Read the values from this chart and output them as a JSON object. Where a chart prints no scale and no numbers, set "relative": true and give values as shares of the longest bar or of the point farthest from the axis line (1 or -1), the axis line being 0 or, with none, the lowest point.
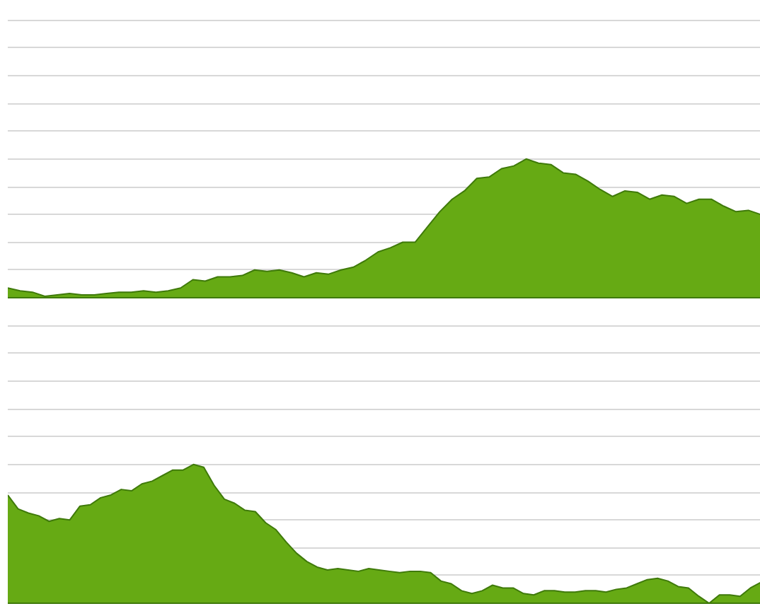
{
  "chart_data": [
    {
      "type": "area",
      "relative": true,
      "grid": "y",
      "categories": [
        null,
        null,
        null,
        null,
        null,
        null,
        null,
        null,
        null,
        null,
        null,
        null,
        null,
        null,
        null,
        null,
        null,
        null,
        null,
        null,
        null,
        null,
        null,
        null,
        null,
        null,
        null,
        null,
        null,
        null,
        null,
        null,
        null,
        null,
        null,
        null,
        null,
        null,
        null,
        null,
        null,
        null,
        null,
        null,
        null,
        null,
        null,
        null,
        null,
        null,
        null,
        null,
        null,
        null,
        null,
        null,
        null,
        null,
        null,
        null,
        null,
        null
      ],
      "series": [
        {
          "color": "#66aa14",
          "values": [
            0.07,
            0.05,
            0.04,
            0.01,
            0.02,
            0.03,
            0.02,
            0.02,
            0.03,
            0.04,
            0.04,
            0.05,
            0.04,
            0.05,
            0.07,
            0.13,
            0.12,
            0.15,
            0.15,
            0.16,
            0.2,
            0.19,
            0.2,
            0.18,
            0.15,
            0.18,
            0.17,
            0.2,
            0.22,
            0.27,
            0.33,
            0.36,
            0.4,
            0.4,
            0.51,
            0.62,
            0.71,
            0.77,
            0.86,
            0.87,
            0.93,
            0.95,
            1.0,
            0.97,
            0.96,
            0.9,
            0.89,
            0.84,
            0.78,
            0.73,
            0.77,
            0.76,
            0.71,
            0.74,
            0.73,
            0.68,
            0.71,
            0.71,
            0.66,
            0.62,
            0.63,
            0.6
          ]
        }
      ]
    },
    {
      "type": "area",
      "relative": true,
      "grid": "y",
      "categories": [
        null,
        null,
        null,
        null,
        null,
        null,
        null,
        null,
        null,
        null,
        null,
        null,
        null,
        null,
        null,
        null,
        null,
        null,
        null,
        null,
        null,
        null,
        null,
        null,
        null,
        null,
        null,
        null,
        null,
        null,
        null,
        null,
        null,
        null,
        null,
        null,
        null,
        null,
        null,
        null,
        null,
        null,
        null,
        null,
        null,
        null,
        null,
        null,
        null,
        null,
        null,
        null,
        null,
        null,
        null,
        null,
        null,
        null,
        null,
        null,
        null,
        null,
        null,
        null,
        null,
        null,
        null,
        null,
        null,
        null,
        null,
        null,
        null,
        null
      ],
      "series": [
        {
          "color": "#66aa14",
          "values": [
            0.78,
            0.68,
            0.65,
            0.63,
            0.59,
            0.61,
            0.6,
            0.7,
            0.71,
            0.76,
            0.78,
            0.82,
            0.81,
            0.86,
            0.88,
            0.92,
            0.96,
            0.96,
            1.0,
            0.98,
            0.85,
            0.75,
            0.72,
            0.67,
            0.66,
            0.58,
            0.53,
            0.44,
            0.36,
            0.3,
            0.26,
            0.24,
            0.25,
            0.24,
            0.23,
            0.25,
            0.24,
            0.23,
            0.22,
            0.23,
            0.23,
            0.22,
            0.16,
            0.14,
            0.09,
            0.07,
            0.09,
            0.13,
            0.11,
            0.11,
            0.07,
            0.06,
            0.09,
            0.09,
            0.08,
            0.08,
            0.09,
            0.09,
            0.08,
            0.1,
            0.11,
            0.14,
            0.17,
            0.18,
            0.16,
            0.12,
            0.11,
            0.05,
            0,
            0.06,
            0.06,
            0.05,
            0.11,
            0.15
          ]
        }
      ]
    }
  ]
}
